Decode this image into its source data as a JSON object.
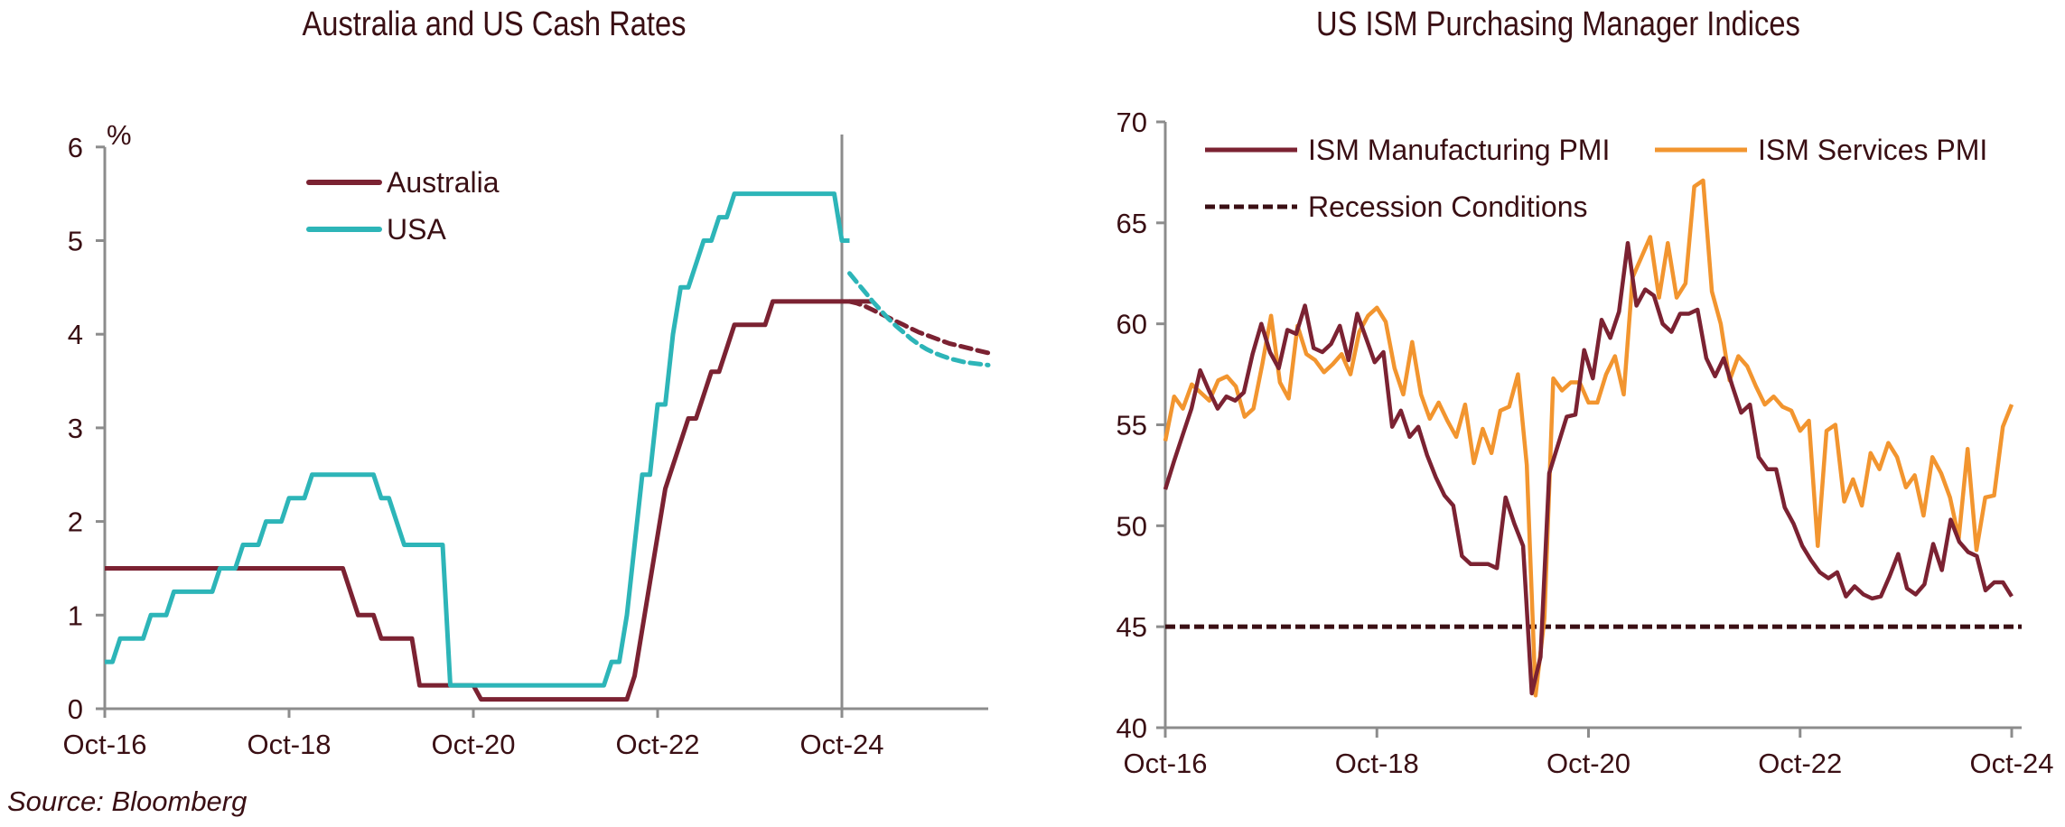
{
  "source_note": "Source: Bloomberg",
  "chart_data": [
    {
      "type": "line",
      "title": "Australia and US Cash Rates",
      "ylabel": "%",
      "xlabel": "",
      "ylim": [
        0,
        6
      ],
      "yticks": [
        "0",
        "1",
        "2",
        "3",
        "4",
        "5",
        "6"
      ],
      "xticks": [
        "Oct-16",
        "Oct-18",
        "Oct-20",
        "Oct-22",
        "Oct-24"
      ],
      "x_start": "Oct-16",
      "x_frequency": "monthly",
      "x_end_months_after_start": 117,
      "grid": false,
      "legend": "top-left",
      "reference_line": {
        "label": "",
        "at": "Oct-24",
        "color": "#8c8c8c",
        "orientation": "vertical"
      },
      "series": [
        {
          "name": "Australia",
          "color": "#7b2232",
          "values": [
            1.5,
            1.5,
            1.5,
            1.5,
            1.5,
            1.5,
            1.5,
            1.5,
            1.5,
            1.5,
            1.5,
            1.5,
            1.5,
            1.5,
            1.5,
            1.5,
            1.5,
            1.5,
            1.5,
            1.5,
            1.5,
            1.5,
            1.5,
            1.5,
            1.5,
            1.5,
            1.5,
            1.5,
            1.5,
            1.5,
            1.5,
            1.5,
            1.25,
            1.0,
            1.0,
            1.0,
            0.75,
            0.75,
            0.75,
            0.75,
            0.75,
            0.25,
            0.25,
            0.25,
            0.25,
            0.25,
            0.25,
            0.25,
            0.25,
            0.1,
            0.1,
            0.1,
            0.1,
            0.1,
            0.1,
            0.1,
            0.1,
            0.1,
            0.1,
            0.1,
            0.1,
            0.1,
            0.1,
            0.1,
            0.1,
            0.1,
            0.1,
            0.1,
            0.1,
            0.35,
            0.85,
            1.35,
            1.85,
            2.35,
            2.6,
            2.85,
            3.1,
            3.1,
            3.35,
            3.6,
            3.6,
            3.85,
            4.1,
            4.1,
            4.1,
            4.1,
            4.1,
            4.35,
            4.35,
            4.35,
            4.35,
            4.35,
            4.35,
            4.35,
            4.35,
            4.35,
            4.35,
            4.35,
            4.35,
            4.35,
            4.35
          ],
          "forecast": [
            4.35,
            4.33,
            4.3,
            4.26,
            4.22,
            4.18,
            4.14,
            4.1,
            4.06,
            4.02,
            3.99,
            3.96,
            3.93,
            3.9,
            3.88,
            3.86,
            3.84,
            3.82,
            3.8
          ]
        },
        {
          "name": "USA",
          "color": "#2db5b8",
          "values": [
            0.5,
            0.5,
            0.75,
            0.75,
            0.75,
            0.75,
            1.0,
            1.0,
            1.0,
            1.25,
            1.25,
            1.25,
            1.25,
            1.25,
            1.25,
            1.5,
            1.5,
            1.5,
            1.75,
            1.75,
            1.75,
            2.0,
            2.0,
            2.0,
            2.25,
            2.25,
            2.25,
            2.5,
            2.5,
            2.5,
            2.5,
            2.5,
            2.5,
            2.5,
            2.5,
            2.5,
            2.25,
            2.25,
            2.0,
            1.75,
            1.75,
            1.75,
            1.75,
            1.75,
            1.75,
            0.25,
            0.25,
            0.25,
            0.25,
            0.25,
            0.25,
            0.25,
            0.25,
            0.25,
            0.25,
            0.25,
            0.25,
            0.25,
            0.25,
            0.25,
            0.25,
            0.25,
            0.25,
            0.25,
            0.25,
            0.25,
            0.5,
            0.5,
            1.0,
            1.75,
            2.5,
            2.5,
            3.25,
            3.25,
            4.0,
            4.5,
            4.5,
            4.75,
            5.0,
            5.0,
            5.25,
            5.25,
            5.5,
            5.5,
            5.5,
            5.5,
            5.5,
            5.5,
            5.5,
            5.5,
            5.5,
            5.5,
            5.5,
            5.5,
            5.5,
            5.5,
            5.0,
            5.0
          ],
          "forecast": [
            4.65,
            4.55,
            4.45,
            4.35,
            4.26,
            4.17,
            4.09,
            4.02,
            3.95,
            3.89,
            3.84,
            3.8,
            3.77,
            3.74,
            3.72,
            3.7,
            3.69,
            3.68,
            3.67
          ]
        }
      ]
    },
    {
      "type": "line",
      "title": "US ISM Purchasing Manager Indices",
      "ylabel": "",
      "xlabel": "",
      "ylim": [
        40,
        70
      ],
      "yticks": [
        "40",
        "45",
        "50",
        "55",
        "60",
        "65",
        "70"
      ],
      "xticks": [
        "Oct-16",
        "Oct-18",
        "Oct-20",
        "Oct-22",
        "Oct-24"
      ],
      "x_start": "Oct-16",
      "x_frequency": "monthly",
      "grid": false,
      "legend": "top-left",
      "series": [
        {
          "name": "ISM Manufacturing PMI",
          "color": "#7b2232",
          "values": [
            51.8,
            53.2,
            54.5,
            55.8,
            57.7,
            56.7,
            55.8,
            56.4,
            56.2,
            56.6,
            58.5,
            60.0,
            58.6,
            57.8,
            59.7,
            59.5,
            60.9,
            58.8,
            58.6,
            59.0,
            59.9,
            58.2,
            60.5,
            59.3,
            58.1,
            58.6,
            54.9,
            55.7,
            54.4,
            54.9,
            53.5,
            52.4,
            51.5,
            51.0,
            48.5,
            48.1,
            48.1,
            48.1,
            47.9,
            51.4,
            50.1,
            49.0,
            41.7,
            43.5,
            52.6,
            54.0,
            55.4,
            55.5,
            58.7,
            57.3,
            60.2,
            59.3,
            60.6,
            64.0,
            60.9,
            61.7,
            61.4,
            60.0,
            59.6,
            60.5,
            60.5,
            60.7,
            58.3,
            57.4,
            58.3,
            56.9,
            55.6,
            56.0,
            53.4,
            52.8,
            52.8,
            50.9,
            50.1,
            49.0,
            48.3,
            47.7,
            47.4,
            47.7,
            46.5,
            47.0,
            46.6,
            46.4,
            46.5,
            47.5,
            48.6,
            46.9,
            46.6,
            47.1,
            49.1,
            47.8,
            50.3,
            49.2,
            48.7,
            48.5,
            46.8,
            47.2,
            47.2,
            46.5
          ],
          "note": "values from Oct-16 through Oct-24"
        },
        {
          "name": "ISM Services PMI",
          "color": "#f2952f",
          "values": [
            54.2,
            56.4,
            55.8,
            57.0,
            56.6,
            56.2,
            57.2,
            57.4,
            56.9,
            55.4,
            55.8,
            58.0,
            60.4,
            57.1,
            56.3,
            59.9,
            58.5,
            58.2,
            57.6,
            58.0,
            58.5,
            57.5,
            59.6,
            60.4,
            60.8,
            60.1,
            57.8,
            56.5,
            59.1,
            56.5,
            55.3,
            56.1,
            55.2,
            54.4,
            56.0,
            53.1,
            54.8,
            53.6,
            55.7,
            55.9,
            57.5,
            53.0,
            41.6,
            45.4,
            57.3,
            56.7,
            57.1,
            57.1,
            56.1,
            56.1,
            57.5,
            58.4,
            56.5,
            62.3,
            63.3,
            64.3,
            61.3,
            64.0,
            61.3,
            62.0,
            66.8,
            67.1,
            61.6,
            60.0,
            57.2,
            58.4,
            57.9,
            56.9,
            56.0,
            56.4,
            55.9,
            55.7,
            54.7,
            55.2,
            49.0,
            54.7,
            55.0,
            51.2,
            52.3,
            51.0,
            53.6,
            52.8,
            54.1,
            53.4,
            51.9,
            52.5,
            50.5,
            53.4,
            52.6,
            51.4,
            49.4,
            53.8,
            48.8,
            51.4,
            51.5,
            54.9,
            56.0
          ]
        },
        {
          "name": "Recession Conditions",
          "color": "#3a0f14",
          "style": "dashed",
          "constant": 45
        }
      ]
    }
  ]
}
